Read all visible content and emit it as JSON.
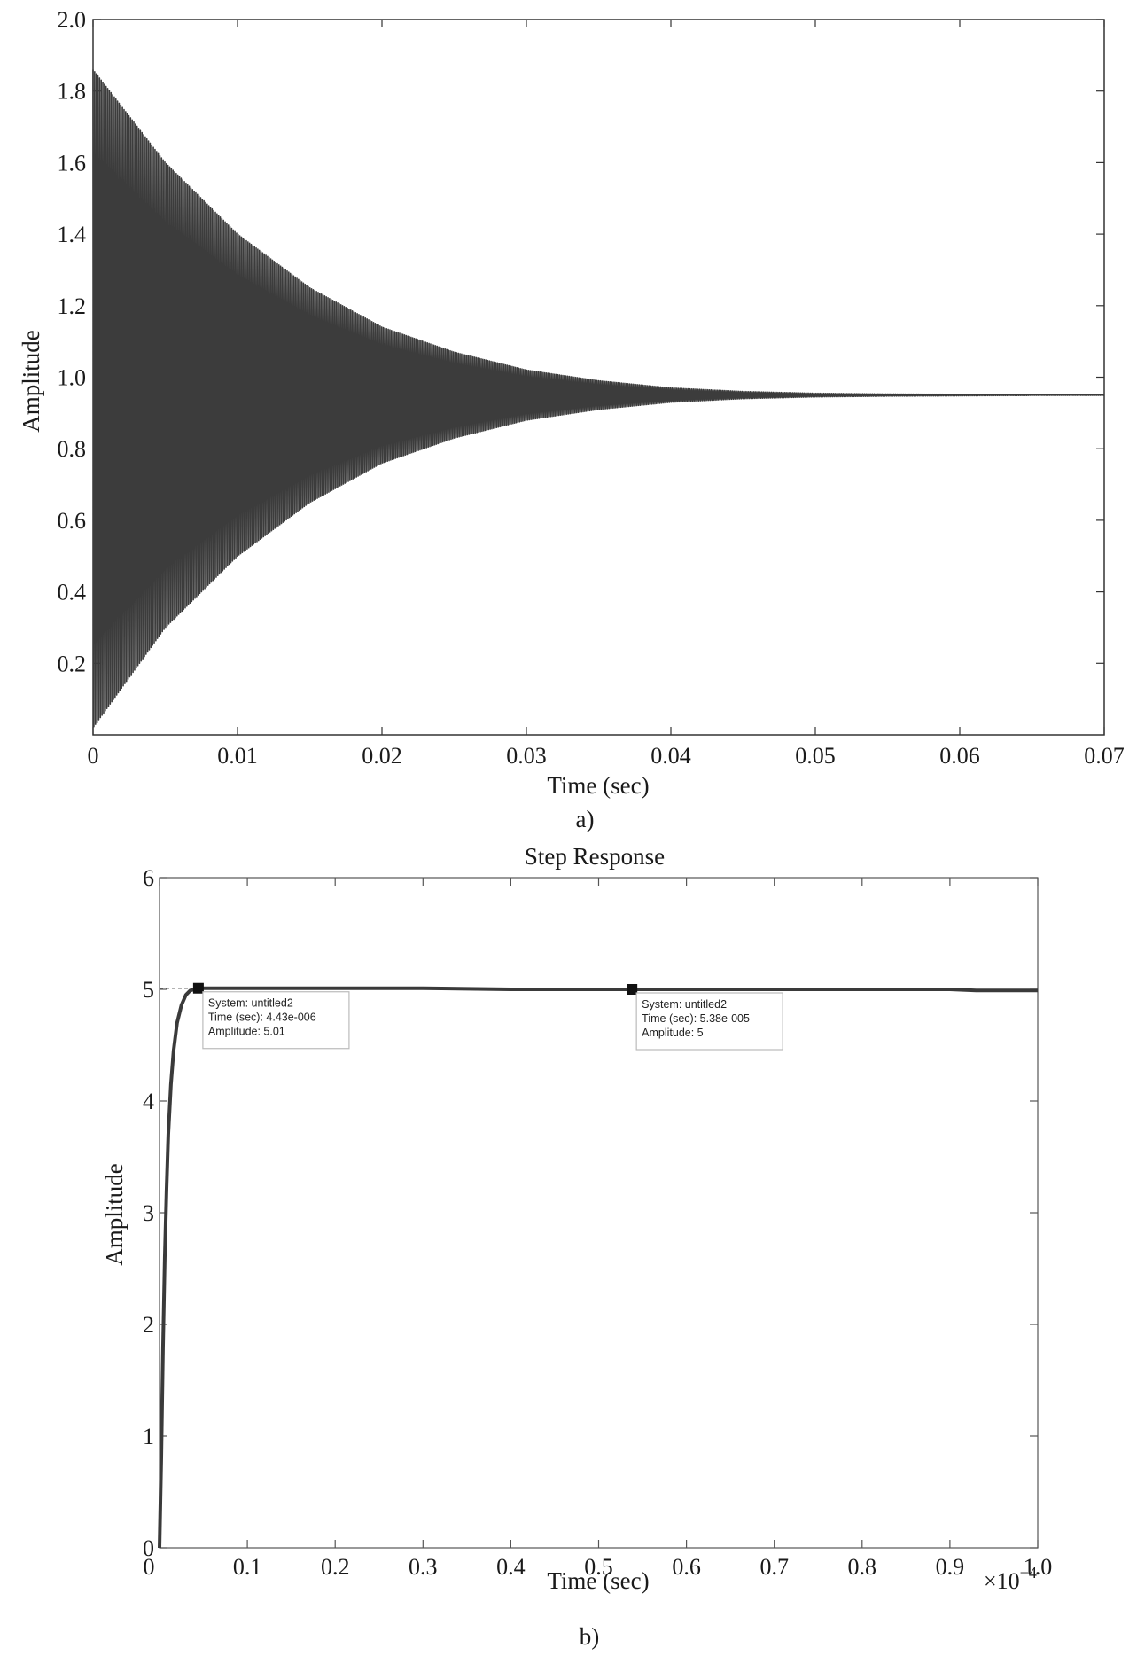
{
  "chart_data": [
    {
      "type": "line",
      "panel_label": "a)",
      "title": "",
      "xlabel": "Time (sec)",
      "ylabel": "Amplitude",
      "xlim": [
        0,
        0.07
      ],
      "ylim": [
        0,
        2.0
      ],
      "xticks": [
        0,
        0.01,
        0.02,
        0.03,
        0.04,
        0.05,
        0.06,
        0.07
      ],
      "xtick_labels": [
        "0",
        "0.01",
        "0.02",
        "0.03",
        "0.04",
        "0.05",
        "0.06",
        "0.07"
      ],
      "yticks": [
        0.2,
        0.4,
        0.6,
        0.8,
        1.0,
        1.2,
        1.4,
        1.6,
        1.8,
        2.0
      ],
      "ytick_labels": [
        "0.2",
        "0.4",
        "0.6",
        "0.8",
        "1.0",
        "1.2",
        "1.4",
        "1.6",
        "1.8",
        "2.0"
      ],
      "grid": false,
      "series": [
        {
          "description": "decaying oscillation settling around 0.95",
          "steady_state": 0.95,
          "envelope": {
            "t": [
              0,
              0.005,
              0.01,
              0.015,
              0.02,
              0.025,
              0.03,
              0.035,
              0.04,
              0.045,
              0.05,
              0.055,
              0.06,
              0.065,
              0.07
            ],
            "upper": [
              1.86,
              1.6,
              1.4,
              1.25,
              1.14,
              1.07,
              1.02,
              0.99,
              0.97,
              0.96,
              0.955,
              0.953,
              0.952,
              0.951,
              0.951
            ],
            "lower": [
              0.02,
              0.3,
              0.5,
              0.65,
              0.76,
              0.83,
              0.88,
              0.91,
              0.93,
              0.94,
              0.945,
              0.947,
              0.948,
              0.949,
              0.949
            ]
          }
        }
      ]
    },
    {
      "type": "line",
      "panel_label": "b)",
      "title": "Step Response",
      "xlabel": "Time (sec)",
      "ylabel": "Amplitude",
      "x_multiplier": "×10",
      "x_multiplier_exp": "−4",
      "xlim": [
        0,
        1.0
      ],
      "ylim": [
        0,
        6
      ],
      "xticks": [
        0,
        0.1,
        0.2,
        0.3,
        0.4,
        0.5,
        0.6,
        0.7,
        0.8,
        0.9,
        1.0
      ],
      "xtick_labels": [
        "0",
        "0.1",
        "0.2",
        "0.3",
        "0.4",
        "0.5",
        "0.6",
        "0.7",
        "0.8",
        "0.9",
        "1.0"
      ],
      "yticks": [
        0,
        1,
        2,
        3,
        4,
        5,
        6
      ],
      "ytick_labels": [
        "0",
        "1",
        "2",
        "3",
        "4",
        "5",
        "6"
      ],
      "grid": false,
      "series": [
        {
          "x": [
            0,
            0.002,
            0.004,
            0.006,
            0.008,
            0.01,
            0.013,
            0.016,
            0.02,
            0.025,
            0.03,
            0.035,
            0.0443,
            0.1,
            0.2,
            0.3,
            0.4,
            0.5,
            0.538,
            0.6,
            0.7,
            0.8,
            0.9,
            0.93,
            1.0
          ],
          "y": [
            0,
            0.8,
            1.8,
            2.6,
            3.2,
            3.7,
            4.15,
            4.45,
            4.7,
            4.86,
            4.95,
            4.99,
            5.01,
            5.01,
            5.01,
            5.01,
            5.0,
            5.0,
            5.0,
            5.0,
            5.0,
            5.0,
            5.0,
            4.99,
            4.99
          ]
        }
      ],
      "data_tips": [
        {
          "x": 0.0443,
          "y": 5.01,
          "line1": "System: untitled2",
          "line2": "Time (sec): 4.43e-006",
          "line3": "Amplitude: 5.01"
        },
        {
          "x": 0.538,
          "y": 5.0,
          "line1": "System: untitled2",
          "line2": "Time (sec): 5.38e-005",
          "line3": "Amplitude: 5"
        }
      ]
    }
  ]
}
